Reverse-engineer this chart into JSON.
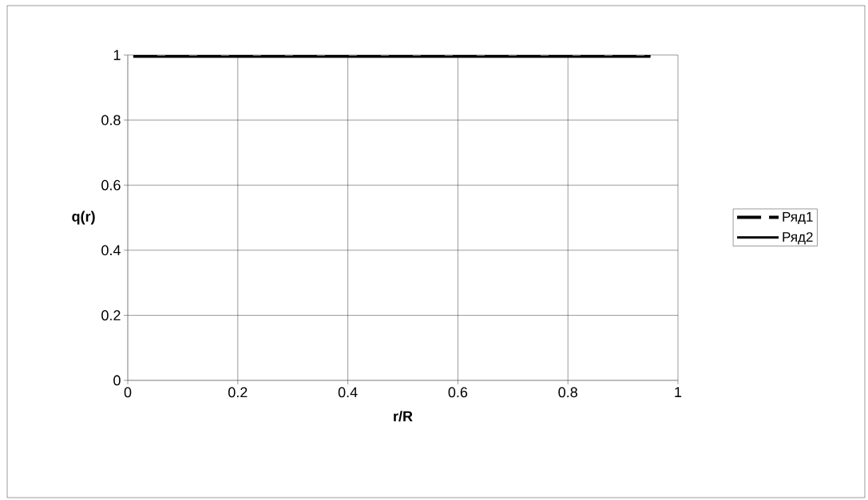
{
  "chart_data": {
    "type": "line",
    "xlabel": "r/R",
    "ylabel": "q(r)",
    "x": [
      0.01,
      0.95
    ],
    "series": [
      {
        "name": "Ряд1",
        "color": "#000000",
        "line_style": "dashed",
        "values": [
          1,
          1
        ]
      },
      {
        "name": "Ряд2",
        "color": "#000000",
        "line_style": "solid",
        "values": [
          0.995,
          0.995
        ]
      }
    ],
    "xlim": [
      0,
      1
    ],
    "ylim": [
      0,
      1
    ],
    "xticks": [
      0,
      0.2,
      0.4,
      0.6,
      0.8,
      1
    ],
    "yticks": [
      0,
      0.2,
      0.4,
      0.6,
      0.8,
      1
    ],
    "grid": true,
    "legend": "right",
    "marker": "none"
  }
}
